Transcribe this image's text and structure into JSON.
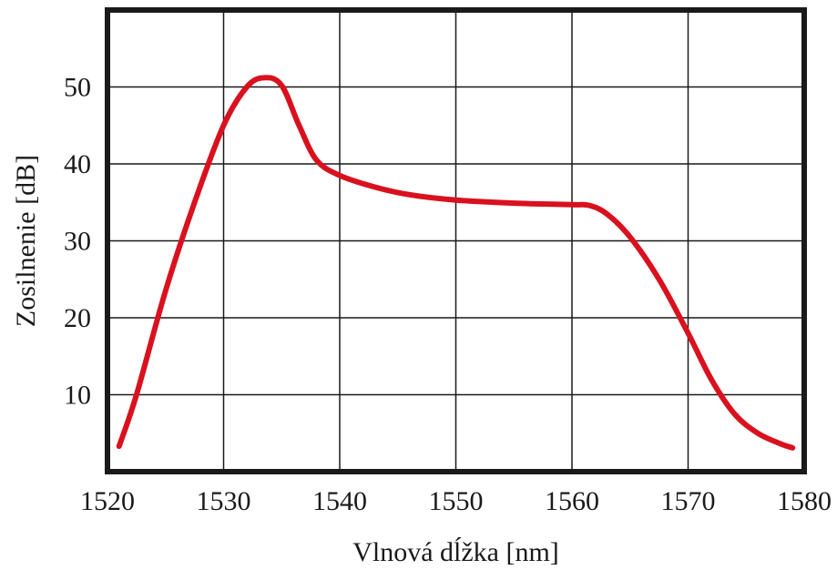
{
  "chart_data": {
    "type": "line",
    "title": "",
    "xlabel": "Vlnová dĺžka [nm]",
    "ylabel": "Zosilnenie [dB]",
    "xlim": [
      1520,
      1580
    ],
    "ylim": [
      0,
      60
    ],
    "x_ticks": [
      1520,
      1530,
      1540,
      1550,
      1560,
      1570,
      1580
    ],
    "y_ticks": [
      10,
      20,
      30,
      40,
      50
    ],
    "grid": true,
    "legend": "none",
    "series": [
      {
        "color": "#d9111f",
        "points": [
          [
            1521,
            3.3
          ],
          [
            1522.5,
            10
          ],
          [
            1525,
            23.5
          ],
          [
            1527.5,
            35
          ],
          [
            1530,
            45
          ],
          [
            1532,
            50
          ],
          [
            1533.5,
            51.2
          ],
          [
            1535,
            50.2
          ],
          [
            1536.5,
            45
          ],
          [
            1538,
            40.5
          ],
          [
            1540,
            38.5
          ],
          [
            1543,
            37
          ],
          [
            1546,
            36
          ],
          [
            1550,
            35.3
          ],
          [
            1555,
            34.9
          ],
          [
            1560,
            34.7
          ],
          [
            1561.5,
            34.6
          ],
          [
            1563,
            33.5
          ],
          [
            1565,
            30.5
          ],
          [
            1567.5,
            25
          ],
          [
            1570,
            18
          ],
          [
            1572,
            12
          ],
          [
            1574,
            7.5
          ],
          [
            1576,
            5
          ],
          [
            1578,
            3.6
          ],
          [
            1579,
            3.1
          ]
        ]
      }
    ]
  }
}
